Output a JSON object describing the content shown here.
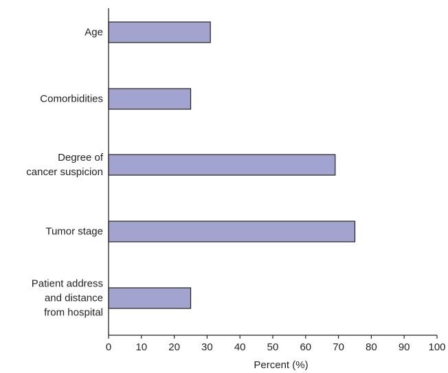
{
  "chart_data": {
    "type": "bar",
    "orientation": "horizontal",
    "categories": [
      [
        "Age"
      ],
      [
        "Comorbidities"
      ],
      [
        "Degree of",
        "cancer suspicion"
      ],
      [
        "Tumor stage"
      ],
      [
        "Patient address",
        "and distance",
        "from hospital"
      ]
    ],
    "values": [
      31,
      25,
      69,
      75,
      25
    ],
    "title": "",
    "xlabel": "Percent (%)",
    "ylabel": "",
    "xlim": [
      0,
      100
    ],
    "xticks": [
      0,
      10,
      20,
      30,
      40,
      50,
      60,
      70,
      80,
      90,
      100
    ],
    "grid": false,
    "colors": {
      "bar_fill": "#a3a3cf",
      "bar_stroke": "#222222",
      "axis": "#222222"
    }
  }
}
